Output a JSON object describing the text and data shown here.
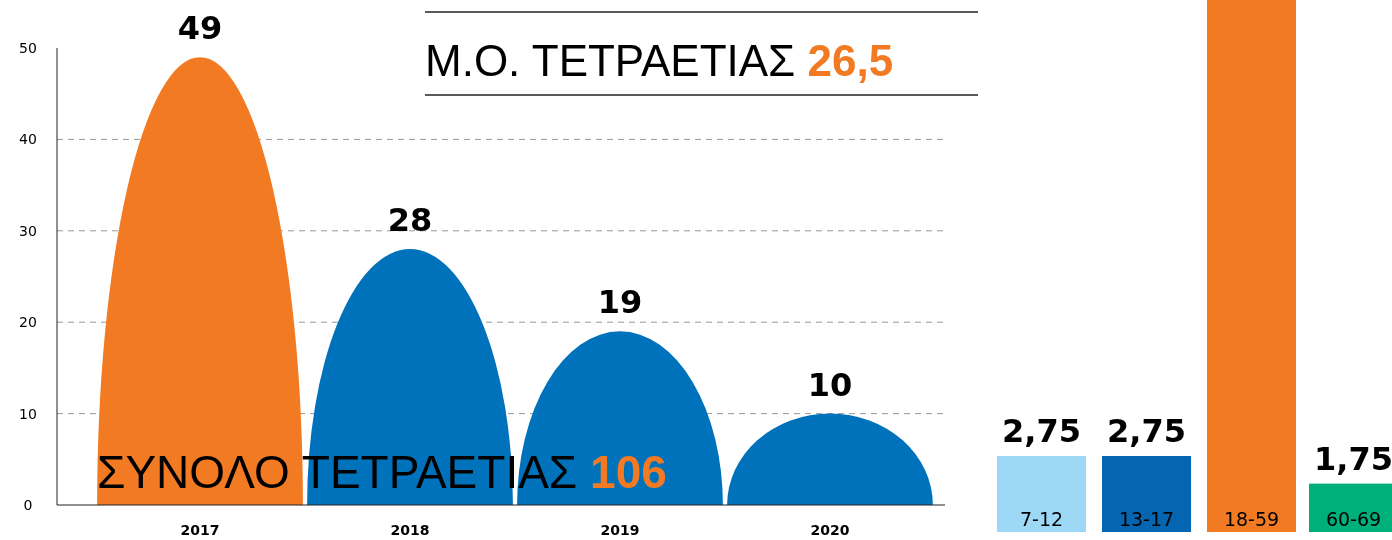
{
  "chart_data": [
    {
      "type": "bar",
      "categories": [
        "2017",
        "2018",
        "2019",
        "2020"
      ],
      "values": [
        49,
        28,
        19,
        10
      ],
      "colors": [
        "#f27a22",
        "#0072bb",
        "#0072bb",
        "#0072bb"
      ],
      "ylim": [
        0,
        50
      ],
      "yticks": [
        0,
        10,
        20,
        30,
        40,
        50
      ],
      "grid": "y",
      "data_labels": true,
      "annotations": [
        "Μ.Ο. ΤΕΤΡΑΕΤΙΑΣ 26,5",
        "ΣΥΝΟΛΟ ΤΕΤΡΑΕΤΙΑΣ 106"
      ]
    },
    {
      "type": "bar",
      "categories": [
        "7-12",
        "13-17",
        "18-59",
        "60-69"
      ],
      "values": [
        2.75,
        2.75,
        19.25,
        1.75
      ],
      "colors": [
        "#9dd9f6",
        "#0565b0",
        "#f27a22",
        "#00b07c"
      ],
      "value_labels": [
        "2,75",
        "2,75",
        null,
        "1,75"
      ]
    }
  ]
}
